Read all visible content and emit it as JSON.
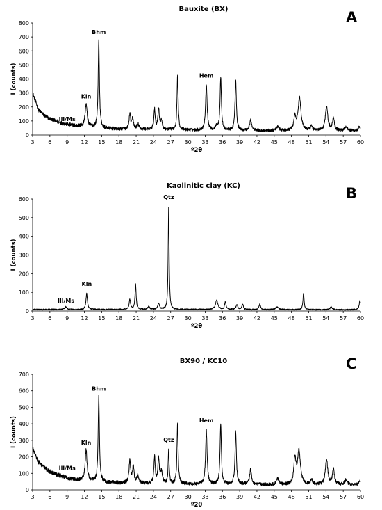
{
  "chart_data": [
    {
      "type": "line",
      "panel_label": "A",
      "title": "Bauxite (BX)",
      "xlabel": "º2θ",
      "ylabel": "I (counts)",
      "xlim": [
        3,
        60
      ],
      "ylim": [
        0,
        800
      ],
      "x_ticks": [
        3,
        6,
        9,
        12,
        15,
        18,
        21,
        24,
        27,
        30,
        33,
        36,
        39,
        42,
        45,
        48,
        51,
        54,
        57,
        60
      ],
      "y_ticks": [
        0,
        100,
        200,
        300,
        400,
        500,
        600,
        700,
        800
      ],
      "background": {
        "points": [
          [
            3,
            300
          ],
          [
            4,
            180
          ],
          [
            5,
            140
          ],
          [
            6,
            115
          ],
          [
            7,
            100
          ],
          [
            8,
            85
          ],
          [
            9,
            75
          ],
          [
            10,
            68
          ],
          [
            11,
            62
          ],
          [
            12,
            58
          ],
          [
            13,
            55
          ],
          [
            14,
            52
          ],
          [
            16,
            45
          ],
          [
            18,
            42
          ],
          [
            20,
            40
          ],
          [
            25,
            38
          ],
          [
            30,
            35
          ],
          [
            35,
            33
          ],
          [
            40,
            32
          ],
          [
            45,
            30
          ],
          [
            50,
            30
          ],
          [
            55,
            30
          ],
          [
            60,
            30
          ]
        ],
        "noise": 14
      },
      "peaks": [
        {
          "x": 12.3,
          "height": 160,
          "width": 0.22
        },
        {
          "x": 14.5,
          "height": 630,
          "width": 0.13
        },
        {
          "x": 19.9,
          "height": 110,
          "width": 0.15
        },
        {
          "x": 20.4,
          "height": 80,
          "width": 0.15
        },
        {
          "x": 21.3,
          "height": 40,
          "width": 0.2
        },
        {
          "x": 24.2,
          "height": 140,
          "width": 0.14
        },
        {
          "x": 24.9,
          "height": 150,
          "width": 0.15
        },
        {
          "x": 25.4,
          "height": 60,
          "width": 0.18
        },
        {
          "x": 28.2,
          "height": 390,
          "width": 0.12
        },
        {
          "x": 33.2,
          "height": 330,
          "width": 0.16
        },
        {
          "x": 35.0,
          "height": 30,
          "width": 0.2
        },
        {
          "x": 35.7,
          "height": 380,
          "width": 0.14
        },
        {
          "x": 38.3,
          "height": 360,
          "width": 0.14
        },
        {
          "x": 40.9,
          "height": 75,
          "width": 0.2
        },
        {
          "x": 45.6,
          "height": 30,
          "width": 0.25
        },
        {
          "x": 48.6,
          "height": 90,
          "width": 0.22
        },
        {
          "x": 49.4,
          "height": 230,
          "width": 0.3
        },
        {
          "x": 51.5,
          "height": 30,
          "width": 0.2
        },
        {
          "x": 54.1,
          "height": 175,
          "width": 0.25
        },
        {
          "x": 55.3,
          "height": 90,
          "width": 0.2
        },
        {
          "x": 57.5,
          "height": 30,
          "width": 0.25
        },
        {
          "x": 59.8,
          "height": 25,
          "width": 0.2
        }
      ],
      "annotations": [
        {
          "text": "Bhm",
          "x": 14.5,
          "y": 720
        },
        {
          "text": "Kln",
          "x": 12.3,
          "y": 260
        },
        {
          "text": "Ill/Ms",
          "x": 9.0,
          "y": 100
        },
        {
          "text": "Hem",
          "x": 33.2,
          "y": 410
        }
      ]
    },
    {
      "type": "line",
      "panel_label": "B",
      "title": "Kaolinitic clay (KC)",
      "xlabel": "º2θ",
      "ylabel": "I (counts)",
      "xlim": [
        3,
        60
      ],
      "ylim": [
        0,
        600
      ],
      "x_ticks": [
        3,
        6,
        9,
        12,
        15,
        18,
        21,
        24,
        27,
        30,
        33,
        36,
        39,
        42,
        45,
        48,
        51,
        54,
        57,
        60
      ],
      "y_ticks": [
        0,
        100,
        200,
        300,
        400,
        500,
        600
      ],
      "background": {
        "points": [
          [
            3,
            8
          ],
          [
            10,
            8
          ],
          [
            20,
            8
          ],
          [
            30,
            8
          ],
          [
            40,
            7
          ],
          [
            50,
            7
          ],
          [
            60,
            7
          ]
        ],
        "noise": 6
      },
      "peaks": [
        {
          "x": 8.8,
          "height": 15,
          "width": 0.2
        },
        {
          "x": 12.4,
          "height": 85,
          "width": 0.15
        },
        {
          "x": 19.9,
          "height": 55,
          "width": 0.15
        },
        {
          "x": 20.9,
          "height": 135,
          "width": 0.12
        },
        {
          "x": 23.2,
          "height": 15,
          "width": 0.2
        },
        {
          "x": 24.9,
          "height": 30,
          "width": 0.2
        },
        {
          "x": 26.65,
          "height": 555,
          "width": 0.1
        },
        {
          "x": 35.0,
          "height": 50,
          "width": 0.25
        },
        {
          "x": 36.5,
          "height": 40,
          "width": 0.15
        },
        {
          "x": 38.5,
          "height": 25,
          "width": 0.2
        },
        {
          "x": 39.5,
          "height": 30,
          "width": 0.15
        },
        {
          "x": 42.5,
          "height": 30,
          "width": 0.15
        },
        {
          "x": 45.5,
          "height": 15,
          "width": 0.3
        },
        {
          "x": 50.1,
          "height": 90,
          "width": 0.12
        },
        {
          "x": 54.9,
          "height": 15,
          "width": 0.2
        },
        {
          "x": 59.9,
          "height": 50,
          "width": 0.15
        }
      ],
      "annotations": [
        {
          "text": "Qtz",
          "x": 26.65,
          "y": 600
        },
        {
          "text": "Kln",
          "x": 12.4,
          "y": 135
        },
        {
          "text": "Ill/Ms",
          "x": 8.8,
          "y": 45
        }
      ]
    },
    {
      "type": "line",
      "panel_label": "C",
      "title": "BX90 / KC10",
      "xlabel": "º2θ",
      "ylabel": "I (counts)",
      "xlim": [
        3,
        60
      ],
      "ylim": [
        0,
        700
      ],
      "x_ticks": [
        3,
        6,
        9,
        12,
        15,
        18,
        21,
        24,
        27,
        30,
        33,
        36,
        39,
        42,
        45,
        48,
        51,
        54,
        57,
        60
      ],
      "y_ticks": [
        0,
        100,
        200,
        300,
        400,
        500,
        600,
        700
      ],
      "background": {
        "points": [
          [
            3,
            250
          ],
          [
            4,
            170
          ],
          [
            5,
            135
          ],
          [
            6,
            110
          ],
          [
            7,
            95
          ],
          [
            8,
            82
          ],
          [
            9,
            72
          ],
          [
            10,
            65
          ],
          [
            11,
            60
          ],
          [
            12,
            56
          ],
          [
            13,
            53
          ],
          [
            14,
            50
          ],
          [
            16,
            45
          ],
          [
            18,
            42
          ],
          [
            20,
            40
          ],
          [
            25,
            37
          ],
          [
            30,
            35
          ],
          [
            35,
            33
          ],
          [
            40,
            32
          ],
          [
            45,
            30
          ],
          [
            50,
            30
          ],
          [
            55,
            30
          ],
          [
            60,
            30
          ]
        ],
        "noise": 13
      },
      "peaks": [
        {
          "x": 12.3,
          "height": 185,
          "width": 0.2
        },
        {
          "x": 14.5,
          "height": 525,
          "width": 0.13
        },
        {
          "x": 19.9,
          "height": 140,
          "width": 0.16
        },
        {
          "x": 20.5,
          "height": 100,
          "width": 0.16
        },
        {
          "x": 21.3,
          "height": 45,
          "width": 0.2
        },
        {
          "x": 24.2,
          "height": 160,
          "width": 0.14
        },
        {
          "x": 24.9,
          "height": 150,
          "width": 0.15
        },
        {
          "x": 25.4,
          "height": 70,
          "width": 0.18
        },
        {
          "x": 26.65,
          "height": 210,
          "width": 0.1
        },
        {
          "x": 28.2,
          "height": 370,
          "width": 0.12
        },
        {
          "x": 33.2,
          "height": 325,
          "width": 0.16
        },
        {
          "x": 35.7,
          "height": 365,
          "width": 0.14
        },
        {
          "x": 38.3,
          "height": 325,
          "width": 0.14
        },
        {
          "x": 40.9,
          "height": 90,
          "width": 0.2
        },
        {
          "x": 45.6,
          "height": 35,
          "width": 0.25
        },
        {
          "x": 48.6,
          "height": 150,
          "width": 0.22
        },
        {
          "x": 49.3,
          "height": 205,
          "width": 0.3
        },
        {
          "x": 51.5,
          "height": 30,
          "width": 0.2
        },
        {
          "x": 54.1,
          "height": 150,
          "width": 0.25
        },
        {
          "x": 55.3,
          "height": 95,
          "width": 0.2
        },
        {
          "x": 57.5,
          "height": 30,
          "width": 0.25
        },
        {
          "x": 59.9,
          "height": 25,
          "width": 0.2
        }
      ],
      "annotations": [
        {
          "text": "Bhm",
          "x": 14.5,
          "y": 600
        },
        {
          "text": "Kln",
          "x": 12.3,
          "y": 275
        },
        {
          "text": "Ill/Ms",
          "x": 9.0,
          "y": 120
        },
        {
          "text": "Qtz",
          "x": 26.65,
          "y": 290
        },
        {
          "text": "Hem",
          "x": 33.2,
          "y": 410
        }
      ]
    }
  ]
}
